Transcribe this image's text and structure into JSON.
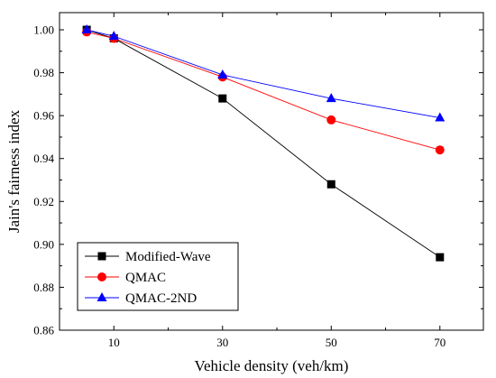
{
  "chart_data": {
    "type": "line",
    "xlabel": "Vehicle density (veh/km)",
    "ylabel": "Jain's fairness index",
    "x": [
      5,
      10,
      30,
      50,
      70
    ],
    "xticks": [
      10,
      30,
      50,
      70
    ],
    "xlim": [
      0,
      78
    ],
    "ylim": [
      0.86,
      1.008
    ],
    "yticks": [
      0.86,
      0.88,
      0.9,
      0.92,
      0.94,
      0.96,
      0.98,
      1.0
    ],
    "ytick_labels": [
      "0.86",
      "0.88",
      "0.90",
      "0.92",
      "0.94",
      "0.96",
      "0.98",
      "1.00"
    ],
    "grid": false,
    "legend_position": "bottom-left",
    "series": [
      {
        "name": "Modified-Wave",
        "color": "#000000",
        "marker": "square",
        "values": [
          1.0,
          0.996,
          0.968,
          0.928,
          0.894
        ]
      },
      {
        "name": "QMAC",
        "color": "#ff0000",
        "marker": "circle",
        "values": [
          0.999,
          0.996,
          0.978,
          0.958,
          0.944
        ]
      },
      {
        "name": "QMAC-2ND",
        "color": "#0000ff",
        "marker": "triangle",
        "values": [
          1.0,
          0.997,
          0.979,
          0.968,
          0.959
        ]
      }
    ]
  }
}
